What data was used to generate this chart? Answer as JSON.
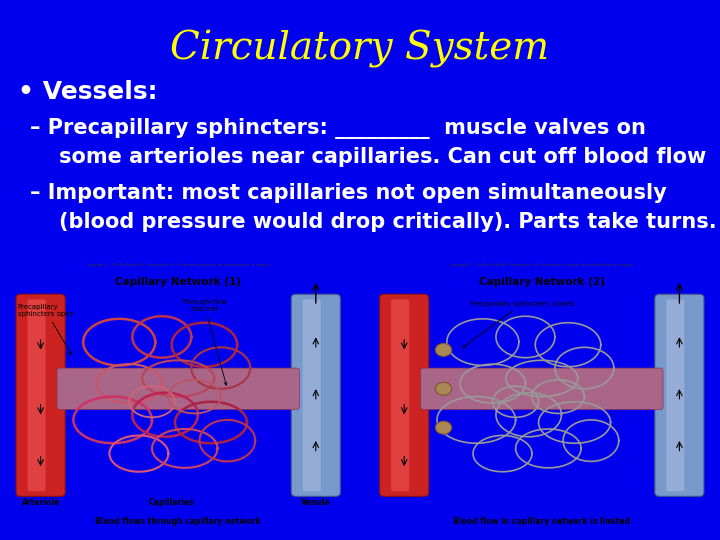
{
  "background_color": "#0000EE",
  "title": "Circulatory System",
  "title_color": "#FFFF00",
  "title_fontsize": 28,
  "title_fontstyle": "italic",
  "title_fontfamily": "serif",
  "bullet_text": "• Vessels:",
  "bullet_color": "#FFFFFF",
  "bullet_fontsize": 18,
  "sub_bullet1_line1": "– Precapillary sphincters: _________  muscle valves on",
  "sub_bullet1_line2": "    some arterioles near capillaries. Can cut off blood flow",
  "sub_bullet2_line1": "– Important: most capillaries not open simultaneously",
  "sub_bullet2_line2": "    (blood pressure would drop critically). Parts take turns.",
  "sub_bullet_color": "#FFFFFF",
  "sub_bullet_fontsize": 15,
  "img1_bg": "#D8CEBC",
  "img2_bg": "#D8CEBC",
  "img_border": "#0000EE"
}
